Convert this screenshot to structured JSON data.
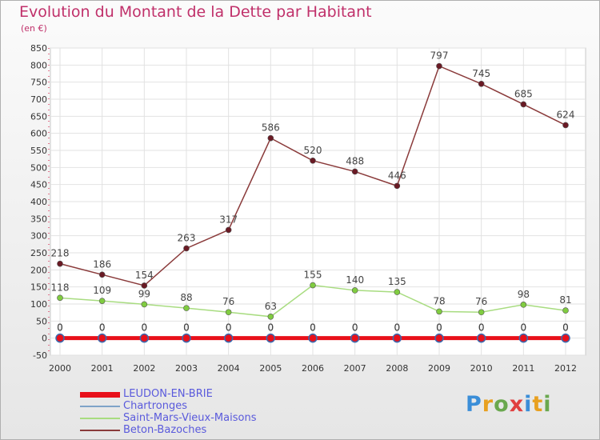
{
  "title": "Evolution du Montant de la Dette par Habitant",
  "subtitle": "(en €)",
  "logo": {
    "text": "Proxiti",
    "letters": [
      "P",
      "r",
      "o",
      "x",
      "i",
      "t",
      "i"
    ],
    "colors": [
      "#3b8ed8",
      "#e8a020",
      "#6aa84f",
      "#e04040",
      "#3b8ed8",
      "#e8a020",
      "#6aa84f"
    ]
  },
  "chart_data": {
    "type": "line",
    "x": [
      "2000",
      "2001",
      "2002",
      "2003",
      "2004",
      "2005",
      "2006",
      "2007",
      "2008",
      "2009",
      "2010",
      "2011",
      "2012"
    ],
    "ylim": [
      -50,
      850
    ],
    "yticks": [
      -50,
      0,
      50,
      100,
      150,
      200,
      250,
      300,
      350,
      400,
      450,
      500,
      550,
      600,
      650,
      700,
      750,
      800,
      850
    ],
    "grid": true,
    "legend_position": "bottom-left",
    "series": [
      {
        "name": "LEUDON-EN-BRIE",
        "color": "#e8101a",
        "marker": "#e8101a",
        "values": [
          0,
          0,
          0,
          0,
          0,
          0,
          0,
          0,
          0,
          0,
          0,
          0,
          0
        ]
      },
      {
        "name": "Chartronges",
        "color": "#7fa3c8",
        "marker": "#4a90d9",
        "values": [
          0,
          0,
          0,
          0,
          0,
          0,
          0,
          0,
          0,
          0,
          0,
          0,
          0
        ]
      },
      {
        "name": "Saint-Mars-Vieux-Maisons",
        "color": "#a8dc80",
        "marker": "#80cc40",
        "values": [
          118,
          109,
          99,
          88,
          76,
          63,
          155,
          140,
          135,
          78,
          76,
          98,
          81
        ]
      },
      {
        "name": "Beton-Bazoches",
        "color": "#8a3a3a",
        "marker": "#6a1a24",
        "values": [
          218,
          186,
          154,
          263,
          317,
          586,
          520,
          488,
          446,
          797,
          745,
          685,
          624
        ]
      }
    ]
  }
}
